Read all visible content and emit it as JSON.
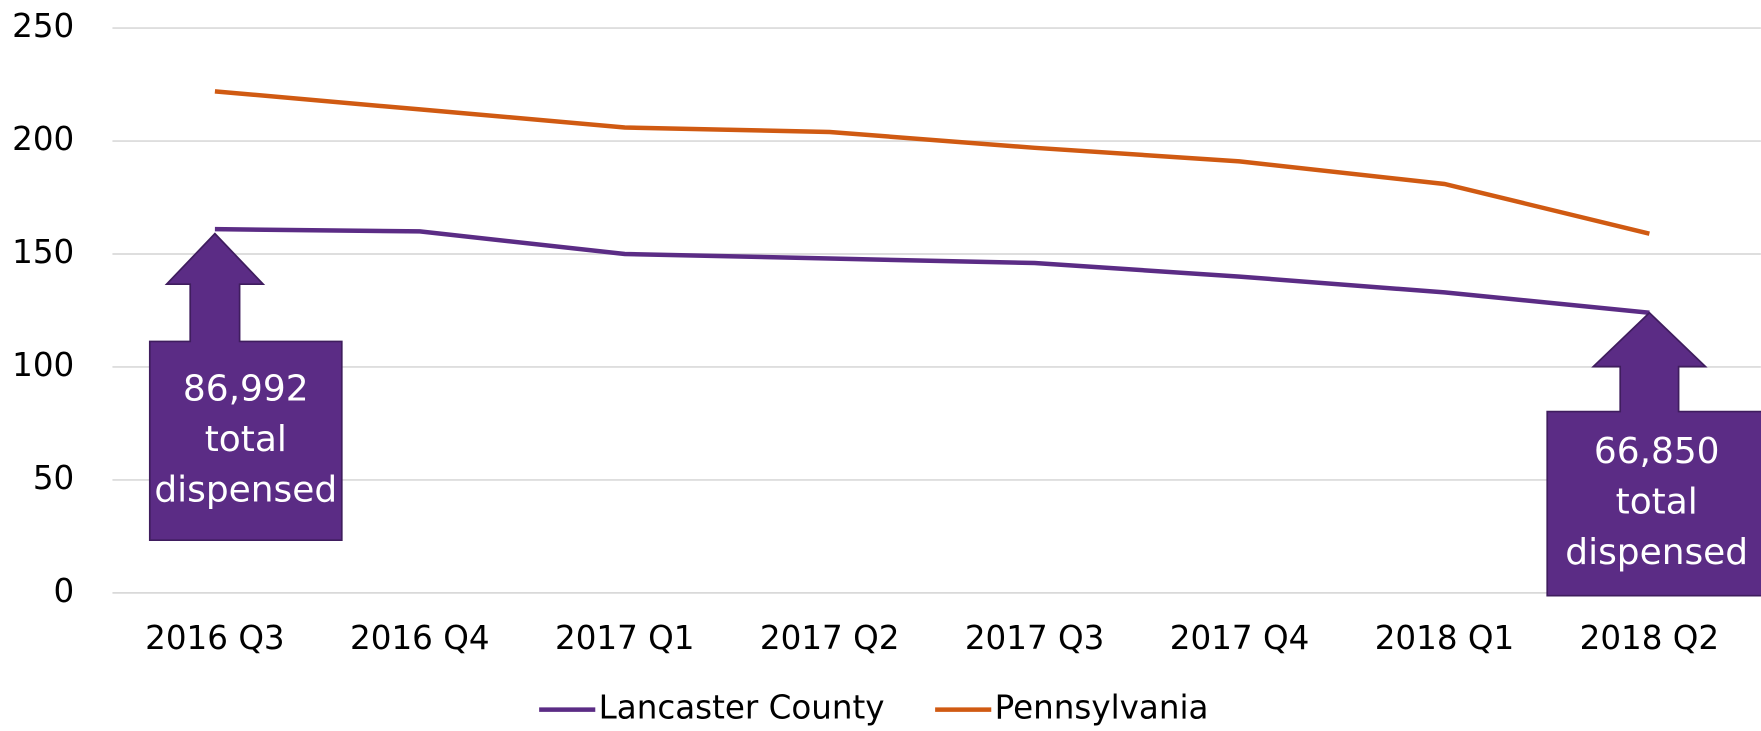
{
  "chart_data": {
    "type": "line",
    "categories": [
      "2016 Q3",
      "2016 Q4",
      "2017 Q1",
      "2017 Q2",
      "2017 Q3",
      "2017 Q4",
      "2018 Q1",
      "2018 Q2"
    ],
    "series": [
      {
        "name": "Lancaster County",
        "color": "#5b2c85",
        "values": [
          161,
          160,
          150,
          148,
          146,
          140,
          133,
          124
        ]
      },
      {
        "name": "Pennsylvania",
        "color": "#d05a12",
        "values": [
          222,
          214,
          206,
          204,
          197,
          191,
          181,
          159
        ]
      }
    ],
    "ylim": [
      0,
      250
    ],
    "yticks": [
      0,
      50,
      100,
      150,
      200,
      250
    ],
    "grid": true,
    "legend": "bottom",
    "annotations": [
      {
        "lines": [
          "86,992",
          "total",
          "dispensed"
        ],
        "series": 0,
        "point": 0
      },
      {
        "lines": [
          "66,850",
          "total",
          "dispensed"
        ],
        "series": 0,
        "point": 7
      }
    ]
  }
}
